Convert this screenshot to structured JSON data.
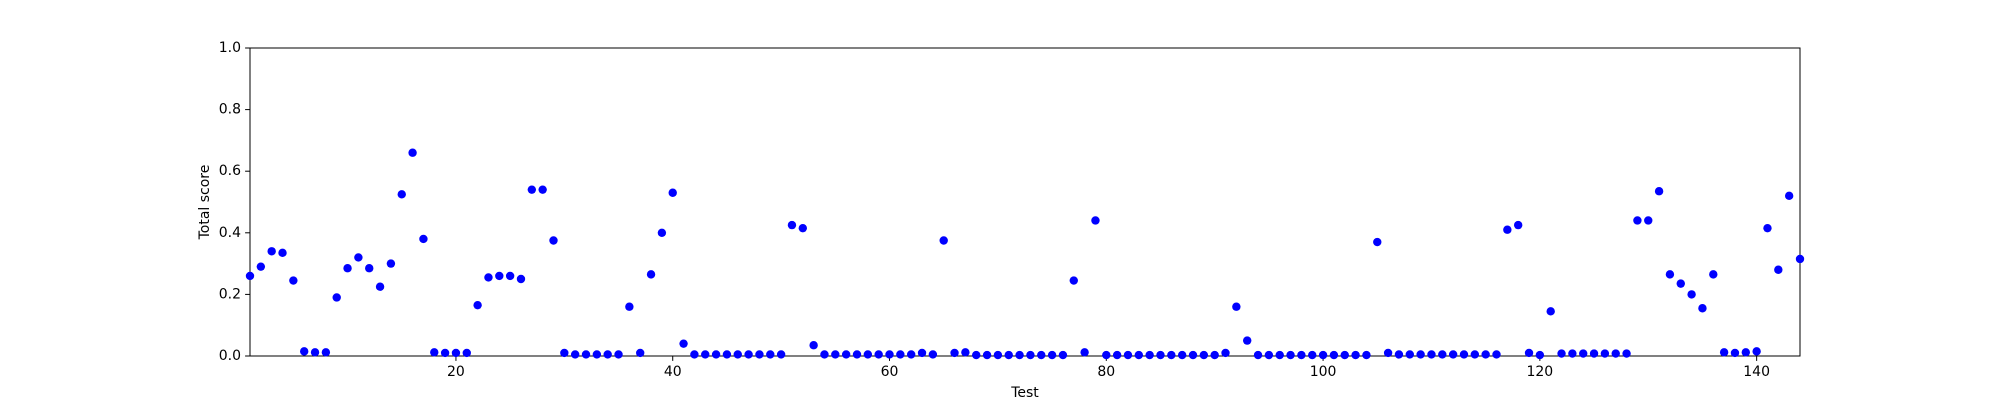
{
  "chart_data": {
    "type": "scatter",
    "xlabel": "Test",
    "ylabel": "Total score",
    "series": [
      {
        "color": "#0000ff",
        "x": [
          1,
          2,
          3,
          4,
          5,
          6,
          7,
          8,
          9,
          10,
          11,
          12,
          13,
          14,
          15,
          16,
          17,
          18,
          19,
          20,
          21,
          22,
          23,
          24,
          25,
          26,
          27,
          28,
          29,
          30,
          31,
          32,
          33,
          34,
          35,
          36,
          37,
          38,
          39,
          40,
          41,
          42,
          43,
          44,
          45,
          46,
          47,
          48,
          49,
          50,
          51,
          52,
          53,
          54,
          55,
          56,
          57,
          58,
          59,
          60,
          61,
          62,
          63,
          64,
          65,
          66,
          67,
          68,
          69,
          70,
          71,
          72,
          73,
          74,
          75,
          76,
          77,
          78,
          79,
          80,
          81,
          82,
          83,
          84,
          85,
          86,
          87,
          88,
          89,
          90,
          91,
          92,
          93,
          94,
          95,
          96,
          97,
          98,
          99,
          100,
          101,
          102,
          103,
          104,
          105,
          106,
          107,
          108,
          109,
          110,
          111,
          112,
          113,
          114,
          115,
          116,
          117,
          118,
          119,
          120,
          121,
          122,
          123,
          124,
          125,
          126,
          127,
          128,
          129,
          130,
          131,
          132,
          133,
          134,
          135,
          136,
          137,
          138,
          139,
          140,
          141,
          142,
          143,
          144
        ],
        "values": [
          0.26,
          0.29,
          0.34,
          0.335,
          0.245,
          0.015,
          0.012,
          0.012,
          0.19,
          0.285,
          0.32,
          0.285,
          0.225,
          0.3,
          0.525,
          0.66,
          0.38,
          0.012,
          0.01,
          0.01,
          0.01,
          0.165,
          0.255,
          0.26,
          0.26,
          0.25,
          0.54,
          0.54,
          0.375,
          0.01,
          0.005,
          0.005,
          0.005,
          0.005,
          0.005,
          0.16,
          0.01,
          0.265,
          0.4,
          0.53,
          0.04,
          0.005,
          0.005,
          0.005,
          0.005,
          0.005,
          0.005,
          0.005,
          0.005,
          0.005,
          0.425,
          0.415,
          0.035,
          0.005,
          0.005,
          0.005,
          0.005,
          0.005,
          0.005,
          0.005,
          0.005,
          0.005,
          0.01,
          0.005,
          0.375,
          0.01,
          0.012,
          0.003,
          0.003,
          0.003,
          0.003,
          0.003,
          0.003,
          0.003,
          0.003,
          0.003,
          0.245,
          0.012,
          0.44,
          0.003,
          0.003,
          0.003,
          0.003,
          0.003,
          0.003,
          0.003,
          0.003,
          0.003,
          0.003,
          0.003,
          0.01,
          0.16,
          0.05,
          0.003,
          0.003,
          0.003,
          0.003,
          0.003,
          0.003,
          0.003,
          0.003,
          0.003,
          0.003,
          0.003,
          0.37,
          0.01,
          0.005,
          0.005,
          0.005,
          0.005,
          0.005,
          0.005,
          0.005,
          0.005,
          0.005,
          0.005,
          0.41,
          0.425,
          0.01,
          0.003,
          0.145,
          0.008,
          0.008,
          0.008,
          0.008,
          0.008,
          0.008,
          0.008,
          0.44,
          0.44,
          0.535,
          0.265,
          0.235,
          0.2,
          0.155,
          0.265,
          0.012,
          0.01,
          0.012,
          0.015,
          0.415,
          0.28,
          0.52,
          0.315
        ]
      }
    ],
    "xlim": [
      1,
      144
    ],
    "xticks": [
      20,
      40,
      60,
      80,
      100,
      120,
      140
    ],
    "ylim": [
      0,
      1
    ],
    "yticks": [
      {
        "value": 0,
        "label": "0.0"
      },
      {
        "value": 0.2,
        "label": "0.2"
      },
      {
        "value": 0.4,
        "label": "0.4"
      },
      {
        "value": 0.6,
        "label": "0.6"
      },
      {
        "value": 0.8,
        "label": "0.8"
      },
      {
        "value": 1,
        "label": "1.0"
      }
    ],
    "grid": false
  }
}
